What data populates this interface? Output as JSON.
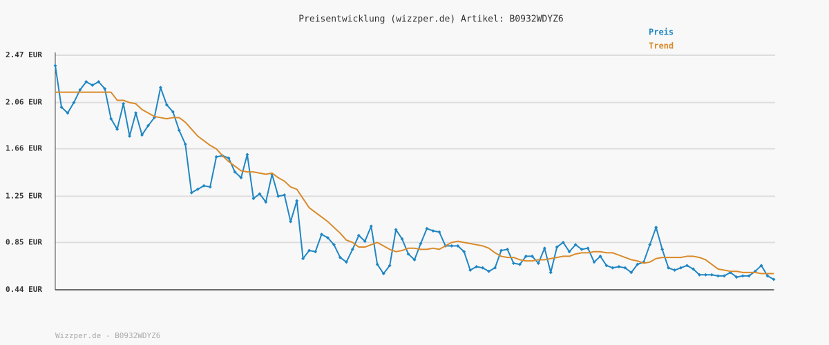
{
  "chart_data": {
    "type": "line",
    "title": "Preisentwicklung (wizzper.de) Artikel: B0932WDYZ6",
    "footer": "Wizzper.de - B0932WDYZ6",
    "ylim": [
      0.44,
      2.47
    ],
    "yticks": [
      {
        "value": 0.44,
        "label": "0.44 EUR"
      },
      {
        "value": 0.85,
        "label": "0.85 EUR"
      },
      {
        "value": 1.25,
        "label": "1.25 EUR"
      },
      {
        "value": 1.66,
        "label": "1.66 EUR"
      },
      {
        "value": 2.06,
        "label": "2.06 EUR"
      },
      {
        "value": 2.47,
        "label": "2.47 EUR"
      }
    ],
    "grid": true,
    "legend": "top-right",
    "series": [
      {
        "name": "Preis",
        "color": "#1f86c3",
        "markers": true,
        "values": [
          2.38,
          2.02,
          1.97,
          2.06,
          2.17,
          2.24,
          2.21,
          2.24,
          2.18,
          1.92,
          1.83,
          2.05,
          1.77,
          1.97,
          1.78,
          1.86,
          1.93,
          2.19,
          2.04,
          1.98,
          1.82,
          1.7,
          1.28,
          1.31,
          1.34,
          1.33,
          1.59,
          1.6,
          1.58,
          1.46,
          1.41,
          1.61,
          1.23,
          1.27,
          1.2,
          1.44,
          1.25,
          1.26,
          1.03,
          1.21,
          0.71,
          0.78,
          0.77,
          0.92,
          0.89,
          0.83,
          0.72,
          0.68,
          0.79,
          0.91,
          0.86,
          0.99,
          0.66,
          0.58,
          0.65,
          0.96,
          0.88,
          0.75,
          0.7,
          0.84,
          0.97,
          0.95,
          0.94,
          0.82,
          0.82,
          0.82,
          0.77,
          0.61,
          0.64,
          0.63,
          0.6,
          0.63,
          0.78,
          0.79,
          0.67,
          0.66,
          0.73,
          0.73,
          0.67,
          0.8,
          0.59,
          0.81,
          0.85,
          0.77,
          0.83,
          0.79,
          0.8,
          0.68,
          0.73,
          0.65,
          0.63,
          0.64,
          0.63,
          0.59,
          0.66,
          0.68,
          0.83,
          0.98,
          0.79,
          0.63,
          0.61,
          0.63,
          0.65,
          0.62,
          0.57,
          0.57,
          0.57,
          0.56,
          0.56,
          0.59,
          0.55,
          0.56,
          0.56,
          0.6,
          0.65,
          0.56,
          0.53
        ]
      },
      {
        "name": "Trend",
        "color": "#d98a2b",
        "markers": false,
        "values": [
          2.15,
          2.15,
          2.15,
          2.15,
          2.15,
          2.15,
          2.15,
          2.15,
          2.15,
          2.15,
          2.08,
          2.08,
          2.06,
          2.05,
          2.0,
          1.97,
          1.94,
          1.93,
          1.92,
          1.93,
          1.93,
          1.89,
          1.83,
          1.77,
          1.73,
          1.69,
          1.66,
          1.6,
          1.55,
          1.51,
          1.47,
          1.46,
          1.46,
          1.45,
          1.44,
          1.45,
          1.41,
          1.38,
          1.33,
          1.31,
          1.23,
          1.15,
          1.11,
          1.07,
          1.03,
          0.98,
          0.93,
          0.87,
          0.85,
          0.81,
          0.81,
          0.83,
          0.85,
          0.82,
          0.79,
          0.77,
          0.78,
          0.8,
          0.8,
          0.79,
          0.79,
          0.8,
          0.79,
          0.82,
          0.85,
          0.86,
          0.85,
          0.84,
          0.83,
          0.82,
          0.8,
          0.76,
          0.73,
          0.72,
          0.72,
          0.7,
          0.69,
          0.69,
          0.7,
          0.7,
          0.71,
          0.72,
          0.73,
          0.73,
          0.75,
          0.76,
          0.76,
          0.77,
          0.77,
          0.76,
          0.76,
          0.74,
          0.72,
          0.7,
          0.69,
          0.67,
          0.68,
          0.71,
          0.72,
          0.72,
          0.72,
          0.72,
          0.73,
          0.73,
          0.72,
          0.7,
          0.66,
          0.62,
          0.61,
          0.6,
          0.6,
          0.59,
          0.59,
          0.59,
          0.58,
          0.58,
          0.58
        ]
      }
    ]
  }
}
